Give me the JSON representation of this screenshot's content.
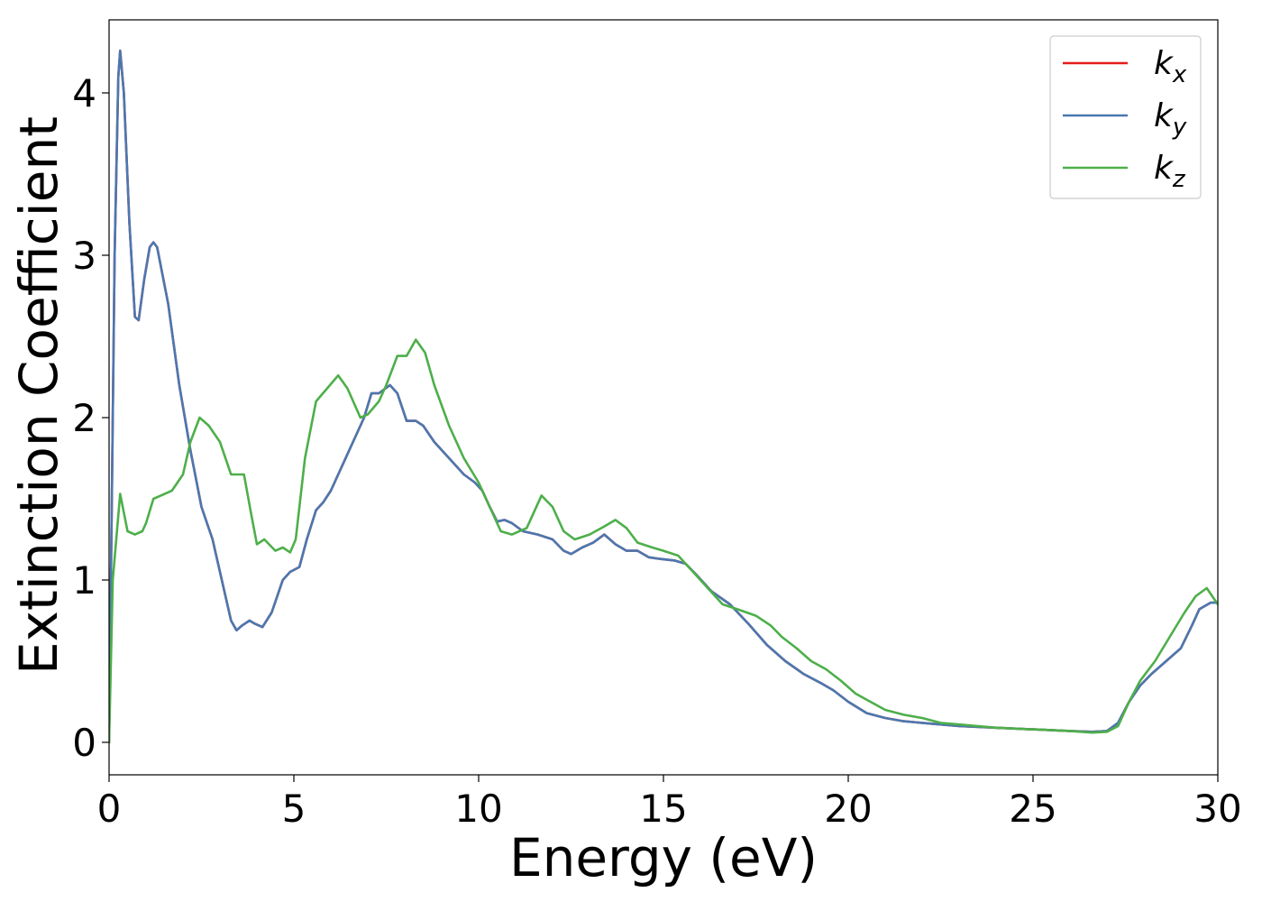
{
  "chart_data": {
    "type": "line",
    "xlabel": "Energy (eV)",
    "ylabel": "Extinction Coefficient",
    "xlim": [
      0,
      30
    ],
    "ylim": [
      -0.2,
      4.45
    ],
    "xticks": [
      0,
      5,
      10,
      15,
      20,
      25,
      30
    ],
    "yticks": [
      0,
      1,
      2,
      3,
      4
    ],
    "grid": false,
    "legend_position": "top-right",
    "series": [
      {
        "name": "k_x",
        "label_main": "k",
        "label_sub": "x",
        "color": "#e41a1c",
        "points": [
          [
            0,
            0
          ],
          [
            0.05,
            1.0
          ],
          [
            0.15,
            3.0
          ],
          [
            0.25,
            4.1
          ],
          [
            0.3,
            4.26
          ],
          [
            0.4,
            4.0
          ],
          [
            0.55,
            3.2
          ],
          [
            0.7,
            2.62
          ],
          [
            0.8,
            2.6
          ],
          [
            0.95,
            2.85
          ],
          [
            1.1,
            3.05
          ],
          [
            1.2,
            3.08
          ],
          [
            1.3,
            3.05
          ],
          [
            1.6,
            2.7
          ],
          [
            1.9,
            2.2
          ],
          [
            2.2,
            1.8
          ],
          [
            2.5,
            1.45
          ],
          [
            2.8,
            1.25
          ],
          [
            3.1,
            0.95
          ],
          [
            3.3,
            0.75
          ],
          [
            3.45,
            0.69
          ],
          [
            3.6,
            0.72
          ],
          [
            3.8,
            0.75
          ],
          [
            3.95,
            0.73
          ],
          [
            4.15,
            0.71
          ],
          [
            4.4,
            0.8
          ],
          [
            4.7,
            1.0
          ],
          [
            4.9,
            1.05
          ],
          [
            5.15,
            1.08
          ],
          [
            5.35,
            1.25
          ],
          [
            5.6,
            1.43
          ],
          [
            5.8,
            1.48
          ],
          [
            6.0,
            1.55
          ],
          [
            6.3,
            1.7
          ],
          [
            6.6,
            1.85
          ],
          [
            6.9,
            2.0
          ],
          [
            7.1,
            2.15
          ],
          [
            7.3,
            2.15
          ],
          [
            7.6,
            2.2
          ],
          [
            7.8,
            2.15
          ],
          [
            8.05,
            1.98
          ],
          [
            8.3,
            1.98
          ],
          [
            8.5,
            1.95
          ],
          [
            8.8,
            1.85
          ],
          [
            9.2,
            1.75
          ],
          [
            9.6,
            1.65
          ],
          [
            9.9,
            1.6
          ],
          [
            10.1,
            1.55
          ],
          [
            10.3,
            1.45
          ],
          [
            10.5,
            1.36
          ],
          [
            10.7,
            1.37
          ],
          [
            10.9,
            1.35
          ],
          [
            11.2,
            1.3
          ],
          [
            11.6,
            1.28
          ],
          [
            12.0,
            1.25
          ],
          [
            12.3,
            1.18
          ],
          [
            12.5,
            1.16
          ],
          [
            12.8,
            1.2
          ],
          [
            13.1,
            1.23
          ],
          [
            13.4,
            1.28
          ],
          [
            13.7,
            1.22
          ],
          [
            14.0,
            1.18
          ],
          [
            14.3,
            1.18
          ],
          [
            14.6,
            1.14
          ],
          [
            14.9,
            1.13
          ],
          [
            15.3,
            1.12
          ],
          [
            15.6,
            1.1
          ],
          [
            15.9,
            1.03
          ],
          [
            16.3,
            0.93
          ],
          [
            16.8,
            0.85
          ],
          [
            17.3,
            0.73
          ],
          [
            17.8,
            0.6
          ],
          [
            18.3,
            0.5
          ],
          [
            18.8,
            0.42
          ],
          [
            19.3,
            0.36
          ],
          [
            19.6,
            0.32
          ],
          [
            20.0,
            0.25
          ],
          [
            20.5,
            0.18
          ],
          [
            21.0,
            0.15
          ],
          [
            21.5,
            0.13
          ],
          [
            22.0,
            0.12
          ],
          [
            22.5,
            0.11
          ],
          [
            23.0,
            0.1
          ],
          [
            24.0,
            0.09
          ],
          [
            25.0,
            0.08
          ],
          [
            26.0,
            0.07
          ],
          [
            26.6,
            0.065
          ],
          [
            27.0,
            0.07
          ],
          [
            27.3,
            0.12
          ],
          [
            27.6,
            0.25
          ],
          [
            27.9,
            0.35
          ],
          [
            28.2,
            0.42
          ],
          [
            28.6,
            0.5
          ],
          [
            29.0,
            0.58
          ],
          [
            29.3,
            0.72
          ],
          [
            29.5,
            0.82
          ],
          [
            29.8,
            0.86
          ],
          [
            30.0,
            0.86
          ]
        ]
      },
      {
        "name": "k_y",
        "label_main": "k",
        "label_sub": "y",
        "color": "#4a78b0",
        "points": [
          [
            0,
            0
          ],
          [
            0.05,
            1.0
          ],
          [
            0.15,
            3.0
          ],
          [
            0.25,
            4.1
          ],
          [
            0.3,
            4.26
          ],
          [
            0.4,
            4.0
          ],
          [
            0.55,
            3.2
          ],
          [
            0.7,
            2.62
          ],
          [
            0.8,
            2.6
          ],
          [
            0.95,
            2.85
          ],
          [
            1.1,
            3.05
          ],
          [
            1.2,
            3.08
          ],
          [
            1.3,
            3.05
          ],
          [
            1.6,
            2.7
          ],
          [
            1.9,
            2.2
          ],
          [
            2.2,
            1.8
          ],
          [
            2.5,
            1.45
          ],
          [
            2.8,
            1.25
          ],
          [
            3.1,
            0.95
          ],
          [
            3.3,
            0.75
          ],
          [
            3.45,
            0.69
          ],
          [
            3.6,
            0.72
          ],
          [
            3.8,
            0.75
          ],
          [
            3.95,
            0.73
          ],
          [
            4.15,
            0.71
          ],
          [
            4.4,
            0.8
          ],
          [
            4.7,
            1.0
          ],
          [
            4.9,
            1.05
          ],
          [
            5.15,
            1.08
          ],
          [
            5.35,
            1.25
          ],
          [
            5.6,
            1.43
          ],
          [
            5.8,
            1.48
          ],
          [
            6.0,
            1.55
          ],
          [
            6.3,
            1.7
          ],
          [
            6.6,
            1.85
          ],
          [
            6.9,
            2.0
          ],
          [
            7.1,
            2.15
          ],
          [
            7.3,
            2.15
          ],
          [
            7.6,
            2.2
          ],
          [
            7.8,
            2.15
          ],
          [
            8.05,
            1.98
          ],
          [
            8.3,
            1.98
          ],
          [
            8.5,
            1.95
          ],
          [
            8.8,
            1.85
          ],
          [
            9.2,
            1.75
          ],
          [
            9.6,
            1.65
          ],
          [
            9.9,
            1.6
          ],
          [
            10.1,
            1.55
          ],
          [
            10.3,
            1.45
          ],
          [
            10.5,
            1.36
          ],
          [
            10.7,
            1.37
          ],
          [
            10.9,
            1.35
          ],
          [
            11.2,
            1.3
          ],
          [
            11.6,
            1.28
          ],
          [
            12.0,
            1.25
          ],
          [
            12.3,
            1.18
          ],
          [
            12.5,
            1.16
          ],
          [
            12.8,
            1.2
          ],
          [
            13.1,
            1.23
          ],
          [
            13.4,
            1.28
          ],
          [
            13.7,
            1.22
          ],
          [
            14.0,
            1.18
          ],
          [
            14.3,
            1.18
          ],
          [
            14.6,
            1.14
          ],
          [
            14.9,
            1.13
          ],
          [
            15.3,
            1.12
          ],
          [
            15.6,
            1.1
          ],
          [
            15.9,
            1.03
          ],
          [
            16.3,
            0.93
          ],
          [
            16.8,
            0.85
          ],
          [
            17.3,
            0.73
          ],
          [
            17.8,
            0.6
          ],
          [
            18.3,
            0.5
          ],
          [
            18.8,
            0.42
          ],
          [
            19.3,
            0.36
          ],
          [
            19.6,
            0.32
          ],
          [
            20.0,
            0.25
          ],
          [
            20.5,
            0.18
          ],
          [
            21.0,
            0.15
          ],
          [
            21.5,
            0.13
          ],
          [
            22.0,
            0.12
          ],
          [
            22.5,
            0.11
          ],
          [
            23.0,
            0.1
          ],
          [
            24.0,
            0.09
          ],
          [
            25.0,
            0.08
          ],
          [
            26.0,
            0.07
          ],
          [
            26.6,
            0.065
          ],
          [
            27.0,
            0.07
          ],
          [
            27.3,
            0.12
          ],
          [
            27.6,
            0.25
          ],
          [
            27.9,
            0.35
          ],
          [
            28.2,
            0.42
          ],
          [
            28.6,
            0.5
          ],
          [
            29.0,
            0.58
          ],
          [
            29.3,
            0.72
          ],
          [
            29.5,
            0.82
          ],
          [
            29.8,
            0.86
          ],
          [
            30.0,
            0.86
          ]
        ]
      },
      {
        "name": "k_z",
        "label_main": "k",
        "label_sub": "z",
        "color": "#4daf4a",
        "points": [
          [
            0,
            0
          ],
          [
            0.1,
            1.0
          ],
          [
            0.3,
            1.53
          ],
          [
            0.5,
            1.3
          ],
          [
            0.7,
            1.28
          ],
          [
            0.9,
            1.3
          ],
          [
            1.0,
            1.35
          ],
          [
            1.2,
            1.5
          ],
          [
            1.4,
            1.52
          ],
          [
            1.7,
            1.55
          ],
          [
            2.0,
            1.65
          ],
          [
            2.2,
            1.85
          ],
          [
            2.45,
            2.0
          ],
          [
            2.7,
            1.95
          ],
          [
            3.0,
            1.85
          ],
          [
            3.3,
            1.65
          ],
          [
            3.5,
            1.65
          ],
          [
            3.65,
            1.65
          ],
          [
            3.85,
            1.4
          ],
          [
            4.0,
            1.22
          ],
          [
            4.2,
            1.25
          ],
          [
            4.5,
            1.18
          ],
          [
            4.7,
            1.2
          ],
          [
            4.9,
            1.17
          ],
          [
            5.05,
            1.25
          ],
          [
            5.3,
            1.75
          ],
          [
            5.6,
            2.1
          ],
          [
            5.9,
            2.18
          ],
          [
            6.2,
            2.26
          ],
          [
            6.45,
            2.18
          ],
          [
            6.8,
            2.0
          ],
          [
            7.0,
            2.02
          ],
          [
            7.3,
            2.1
          ],
          [
            7.5,
            2.2
          ],
          [
            7.8,
            2.38
          ],
          [
            8.05,
            2.38
          ],
          [
            8.3,
            2.48
          ],
          [
            8.55,
            2.4
          ],
          [
            8.8,
            2.2
          ],
          [
            9.2,
            1.95
          ],
          [
            9.6,
            1.75
          ],
          [
            10.0,
            1.6
          ],
          [
            10.3,
            1.45
          ],
          [
            10.6,
            1.3
          ],
          [
            10.9,
            1.28
          ],
          [
            11.3,
            1.32
          ],
          [
            11.7,
            1.52
          ],
          [
            12.0,
            1.45
          ],
          [
            12.3,
            1.3
          ],
          [
            12.6,
            1.25
          ],
          [
            13.0,
            1.28
          ],
          [
            13.4,
            1.33
          ],
          [
            13.7,
            1.37
          ],
          [
            14.0,
            1.32
          ],
          [
            14.3,
            1.23
          ],
          [
            14.7,
            1.2
          ],
          [
            15.0,
            1.18
          ],
          [
            15.4,
            1.15
          ],
          [
            15.8,
            1.05
          ],
          [
            16.2,
            0.95
          ],
          [
            16.6,
            0.85
          ],
          [
            17.0,
            0.82
          ],
          [
            17.5,
            0.78
          ],
          [
            17.9,
            0.72
          ],
          [
            18.2,
            0.65
          ],
          [
            18.6,
            0.58
          ],
          [
            19.0,
            0.5
          ],
          [
            19.4,
            0.45
          ],
          [
            19.8,
            0.38
          ],
          [
            20.2,
            0.3
          ],
          [
            20.6,
            0.25
          ],
          [
            21.0,
            0.2
          ],
          [
            21.5,
            0.17
          ],
          [
            22.0,
            0.15
          ],
          [
            22.5,
            0.12
          ],
          [
            23.0,
            0.11
          ],
          [
            24.0,
            0.09
          ],
          [
            25.0,
            0.08
          ],
          [
            26.0,
            0.07
          ],
          [
            26.6,
            0.06
          ],
          [
            27.0,
            0.065
          ],
          [
            27.3,
            0.1
          ],
          [
            27.6,
            0.25
          ],
          [
            27.9,
            0.38
          ],
          [
            28.3,
            0.5
          ],
          [
            28.7,
            0.65
          ],
          [
            29.1,
            0.8
          ],
          [
            29.4,
            0.9
          ],
          [
            29.7,
            0.95
          ],
          [
            30.0,
            0.85
          ]
        ]
      }
    ]
  }
}
